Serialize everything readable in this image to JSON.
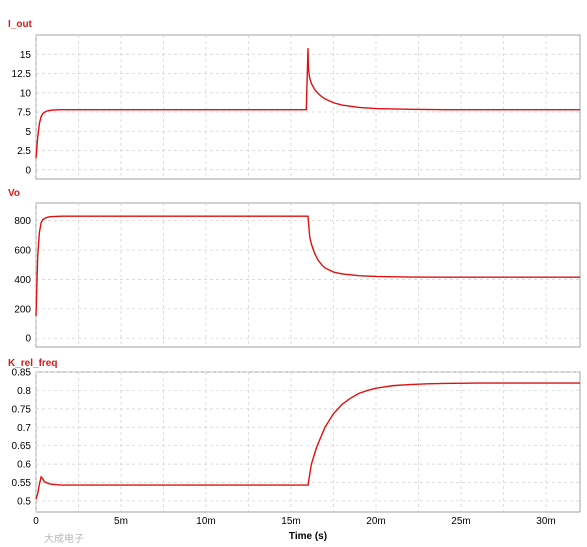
{
  "theme": {
    "trace_color": "#e01010",
    "title_color": "#d41b1b",
    "grid_color": "#cfcfcf"
  },
  "watermark": {
    "text": "大成电子"
  },
  "chart_data": [
    {
      "type": "line",
      "title": "I_out",
      "xlim": [
        0,
        0.032
      ],
      "ylim": [
        -1.2,
        17.5
      ],
      "yticks": [
        0,
        2.5,
        5,
        7.5,
        10,
        12.5,
        15
      ],
      "ytick_labels": [
        "0",
        "2.5",
        "5",
        "7.5",
        "10",
        "12.5",
        "15"
      ],
      "grid": true,
      "series": [
        {
          "x": [
            0,
            0.0001,
            0.0002,
            0.0003,
            0.0004,
            0.0006,
            0.0008,
            0.001,
            0.0015,
            0.002,
            0.004,
            0.008,
            0.012,
            0.0159,
            0.016,
            0.01602,
            0.01605,
            0.0161,
            0.0162,
            0.0164,
            0.0166,
            0.0168,
            0.017,
            0.0175,
            0.018,
            0.019,
            0.02,
            0.022,
            0.024,
            0.026,
            0.028,
            0.03,
            0.032
          ],
          "values": [
            1.5,
            4.2,
            6.0,
            6.9,
            7.3,
            7.6,
            7.7,
            7.75,
            7.8,
            7.8,
            7.8,
            7.8,
            7.8,
            7.8,
            15.8,
            13.6,
            12.7,
            11.9,
            11.2,
            10.4,
            9.9,
            9.5,
            9.2,
            8.7,
            8.4,
            8.1,
            7.95,
            7.85,
            7.8,
            7.8,
            7.8,
            7.8,
            7.8
          ]
        }
      ]
    },
    {
      "type": "line",
      "title": "Vo",
      "xlim": [
        0,
        0.032
      ],
      "ylim": [
        -60,
        920
      ],
      "yticks": [
        0,
        200,
        400,
        600,
        800
      ],
      "ytick_labels": [
        "0",
        "200",
        "400",
        "600",
        "800"
      ],
      "grid": true,
      "series": [
        {
          "x": [
            0,
            0.0001,
            0.0002,
            0.0003,
            0.0004,
            0.0006,
            0.0008,
            0.001,
            0.0015,
            0.002,
            0.004,
            0.008,
            0.012,
            0.016,
            0.0161,
            0.0162,
            0.0164,
            0.0166,
            0.0168,
            0.017,
            0.0175,
            0.018,
            0.019,
            0.02,
            0.022,
            0.024,
            0.026,
            0.028,
            0.03,
            0.032
          ],
          "values": [
            150,
            560,
            720,
            785,
            808,
            820,
            826,
            828,
            830,
            830,
            830,
            830,
            830,
            830,
            690,
            640,
            575,
            530,
            500,
            478,
            450,
            437,
            425,
            420,
            416,
            415,
            415,
            415,
            415,
            415
          ]
        }
      ]
    },
    {
      "type": "line",
      "title": "K_rel_freq",
      "xlim": [
        0,
        0.032
      ],
      "ylim": [
        0.47,
        0.85
      ],
      "yticks": [
        0.5,
        0.55,
        0.6,
        0.65,
        0.7,
        0.75,
        0.8,
        0.85
      ],
      "ytick_labels": [
        "0.5",
        "0.55",
        "0.6",
        "0.65",
        "0.7",
        "0.75",
        "0.8",
        "0.85"
      ],
      "grid": true,
      "xticks": [
        0,
        0.005,
        0.01,
        0.015,
        0.02,
        0.025,
        0.03
      ],
      "xtick_labels": [
        "0",
        "5m",
        "10m",
        "15m",
        "20m",
        "25m",
        "30m"
      ],
      "xlabel": "Time (s)",
      "series": [
        {
          "x": [
            0,
            0.0001,
            0.0002,
            0.0003,
            0.0004,
            0.0005,
            0.0006,
            0.0008,
            0.001,
            0.0012,
            0.0015,
            0.002,
            0.004,
            0.008,
            0.012,
            0.016,
            0.0162,
            0.0165,
            0.017,
            0.0175,
            0.018,
            0.0185,
            0.019,
            0.0195,
            0.02,
            0.021,
            0.022,
            0.023,
            0.024,
            0.026,
            0.028,
            0.03,
            0.032
          ],
          "values": [
            0.505,
            0.52,
            0.545,
            0.565,
            0.56,
            0.552,
            0.55,
            0.546,
            0.545,
            0.544,
            0.543,
            0.543,
            0.543,
            0.543,
            0.543,
            0.543,
            0.6,
            0.645,
            0.7,
            0.737,
            0.762,
            0.779,
            0.792,
            0.8,
            0.806,
            0.813,
            0.816,
            0.818,
            0.819,
            0.82,
            0.82,
            0.82,
            0.82
          ]
        }
      ]
    }
  ]
}
